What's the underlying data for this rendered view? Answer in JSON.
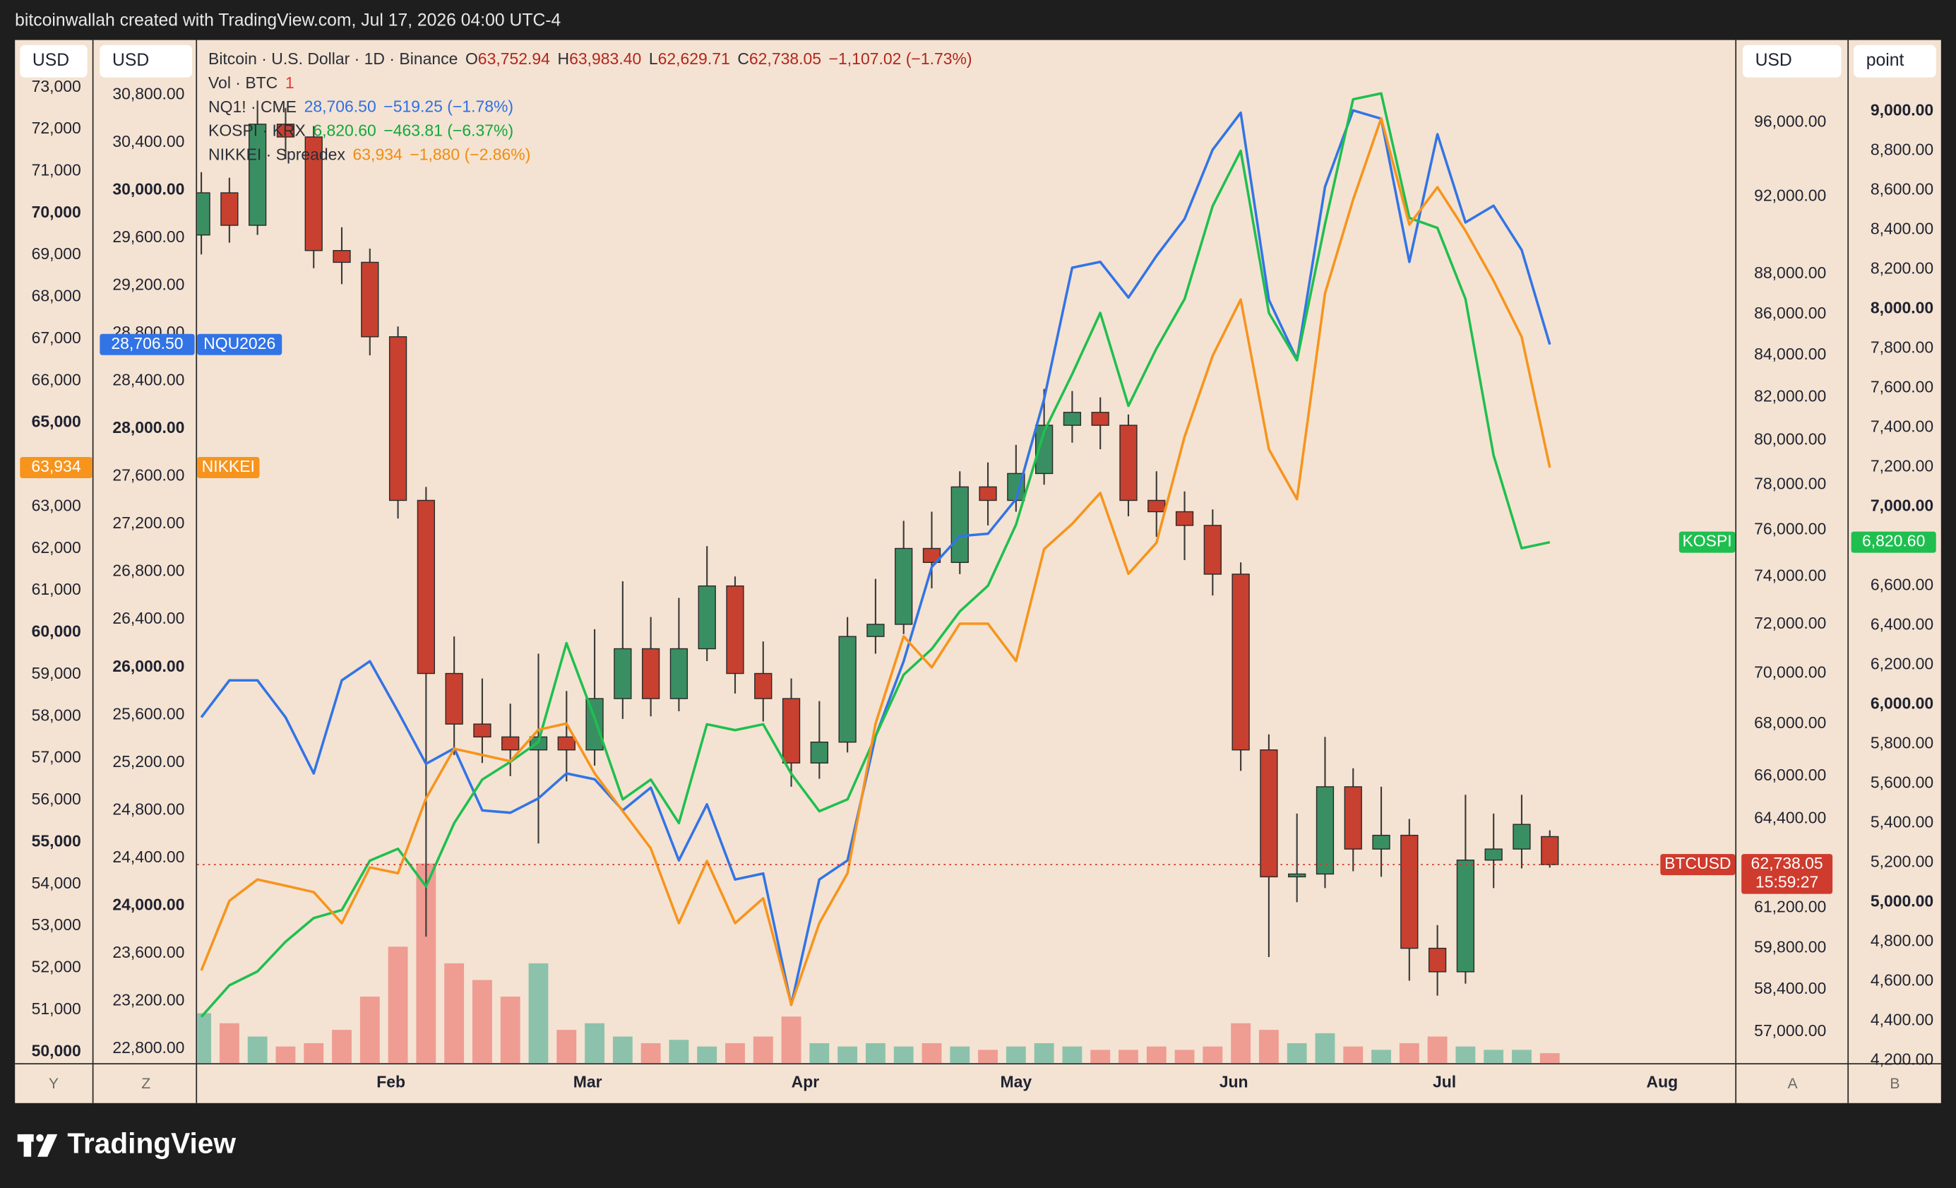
{
  "header": {
    "text": "bitcoinwallah created with TradingView.com, Jul 17, 2026 04:00 UTC-4"
  },
  "footer": {
    "brand": "TradingView"
  },
  "chart_data": {
    "type": "candlestick",
    "x": [
      4,
      8,
      12,
      16,
      20,
      24,
      28,
      32,
      36,
      40,
      44,
      48,
      52,
      56,
      60,
      64,
      68,
      72,
      76,
      80,
      84,
      88,
      92,
      96,
      100,
      104,
      108,
      112,
      116,
      120,
      124,
      128,
      132,
      136,
      140,
      144,
      148,
      152,
      156,
      160,
      164,
      168,
      172,
      176,
      180,
      184,
      188,
      192,
      196
    ],
    "xlim": [
      3.4,
      222.4
    ],
    "xticks": [
      {
        "value": 31,
        "label": "Feb"
      },
      {
        "value": 59,
        "label": "Mar"
      },
      {
        "value": 90,
        "label": "Apr"
      },
      {
        "value": 120,
        "label": "May"
      },
      {
        "value": 151,
        "label": "Jun"
      },
      {
        "value": 181,
        "label": "Jul"
      },
      {
        "value": 212,
        "label": "Aug"
      }
    ],
    "pane_letters": [
      "Y",
      "Z",
      "A",
      "B"
    ],
    "axes": {
      "nikkei": {
        "unit": "USD",
        "scale": "linear",
        "ylim": [
          49730,
          74130
        ],
        "yticks": [
          {
            "value": 50000,
            "label": "50,000",
            "bold": true
          },
          {
            "value": 51000,
            "label": "51,000"
          },
          {
            "value": 52000,
            "label": "52,000"
          },
          {
            "value": 53000,
            "label": "53,000"
          },
          {
            "value": 54000,
            "label": "54,000"
          },
          {
            "value": 55000,
            "label": "55,000",
            "bold": true
          },
          {
            "value": 56000,
            "label": "56,000"
          },
          {
            "value": 57000,
            "label": "57,000"
          },
          {
            "value": 58000,
            "label": "58,000"
          },
          {
            "value": 59000,
            "label": "59,000"
          },
          {
            "value": 60000,
            "label": "60,000",
            "bold": true
          },
          {
            "value": 61000,
            "label": "61,000"
          },
          {
            "value": 62000,
            "label": "62,000"
          },
          {
            "value": 63000,
            "label": "63,000"
          },
          {
            "value": 64000,
            "label": "64,000"
          },
          {
            "value": 65000,
            "label": "65,000",
            "bold": true
          },
          {
            "value": 66000,
            "label": "66,000"
          },
          {
            "value": 67000,
            "label": "67,000"
          },
          {
            "value": 68000,
            "label": "68,000"
          },
          {
            "value": 69000,
            "label": "69,000"
          },
          {
            "value": 70000,
            "label": "70,000",
            "bold": true
          },
          {
            "value": 71000,
            "label": "71,000"
          },
          {
            "value": 72000,
            "label": "72,000"
          },
          {
            "value": 73000,
            "label": "73,000"
          }
        ]
      },
      "nq": {
        "unit": "USD",
        "scale": "linear",
        "ylim": [
          22680,
          31260
        ],
        "yticks": [
          {
            "value": 22800,
            "label": "22,800.00"
          },
          {
            "value": 23200,
            "label": "23,200.00"
          },
          {
            "value": 23600,
            "label": "23,600.00"
          },
          {
            "value": 24000,
            "label": "24,000.00",
            "bold": true
          },
          {
            "value": 24400,
            "label": "24,400.00"
          },
          {
            "value": 24800,
            "label": "24,800.00"
          },
          {
            "value": 25200,
            "label": "25,200.00"
          },
          {
            "value": 25600,
            "label": "25,600.00"
          },
          {
            "value": 26000,
            "label": "26,000.00",
            "bold": true
          },
          {
            "value": 26400,
            "label": "26,400.00"
          },
          {
            "value": 26800,
            "label": "26,800.00"
          },
          {
            "value": 27200,
            "label": "27,200.00"
          },
          {
            "value": 27600,
            "label": "27,600.00"
          },
          {
            "value": 28000,
            "label": "28,000.00",
            "bold": true
          },
          {
            "value": 28400,
            "label": "28,400.00"
          },
          {
            "value": 28800,
            "label": "28,800.00"
          },
          {
            "value": 29200,
            "label": "29,200.00"
          },
          {
            "value": 29600,
            "label": "29,600.00"
          },
          {
            "value": 30000,
            "label": "30,000.00",
            "bold": true
          },
          {
            "value": 30400,
            "label": "30,400.00"
          },
          {
            "value": 30800,
            "label": "30,800.00"
          }
        ]
      },
      "btc": {
        "unit": "USD",
        "scale": "log",
        "ylim": [
          55990,
          100640
        ],
        "yticks": [
          {
            "value": 57000,
            "label": "57,000.00"
          },
          {
            "value": 58400,
            "label": "58,400.00"
          },
          {
            "value": 59800,
            "label": "59,800.00"
          },
          {
            "value": 61200,
            "label": "61,200.00"
          },
          {
            "value": 64400,
            "label": "64,400.00"
          },
          {
            "value": 66000,
            "label": "66,000.00"
          },
          {
            "value": 68000,
            "label": "68,000.00"
          },
          {
            "value": 70000,
            "label": "70,000.00"
          },
          {
            "value": 72000,
            "label": "72,000.00"
          },
          {
            "value": 74000,
            "label": "74,000.00"
          },
          {
            "value": 76000,
            "label": "76,000.00"
          },
          {
            "value": 78000,
            "label": "78,000.00"
          },
          {
            "value": 80000,
            "label": "80,000.00"
          },
          {
            "value": 82000,
            "label": "82,000.00"
          },
          {
            "value": 84000,
            "label": "84,000.00"
          },
          {
            "value": 86000,
            "label": "86,000.00"
          },
          {
            "value": 88000,
            "label": "88,000.00"
          },
          {
            "value": 92000,
            "label": "92,000.00"
          },
          {
            "value": 96000,
            "label": "96,000.00"
          }
        ]
      },
      "kospi": {
        "unit": "point",
        "scale": "linear",
        "ylim": [
          4186,
          9360
        ],
        "yticks": [
          {
            "value": 4200,
            "label": "4,200.00"
          },
          {
            "value": 4400,
            "label": "4,400.00"
          },
          {
            "value": 4600,
            "label": "4,600.00"
          },
          {
            "value": 4800,
            "label": "4,800.00"
          },
          {
            "value": 5000,
            "label": "5,000.00",
            "bold": true
          },
          {
            "value": 5200,
            "label": "5,200.00"
          },
          {
            "value": 5400,
            "label": "5,400.00"
          },
          {
            "value": 5600,
            "label": "5,600.00"
          },
          {
            "value": 5800,
            "label": "5,800.00"
          },
          {
            "value": 6000,
            "label": "6,000.00",
            "bold": true
          },
          {
            "value": 6200,
            "label": "6,200.00"
          },
          {
            "value": 6400,
            "label": "6,400.00"
          },
          {
            "value": 6600,
            "label": "6,600.00"
          },
          {
            "value": 6800,
            "label": "6,800.00"
          },
          {
            "value": 7000,
            "label": "7,000.00",
            "bold": true
          },
          {
            "value": 7200,
            "label": "7,200.00"
          },
          {
            "value": 7400,
            "label": "7,400.00"
          },
          {
            "value": 7600,
            "label": "7,600.00"
          },
          {
            "value": 7800,
            "label": "7,800.00"
          },
          {
            "value": 8000,
            "label": "8,000.00",
            "bold": true
          },
          {
            "value": 8200,
            "label": "8,200.00"
          },
          {
            "value": 8400,
            "label": "8,400.00"
          },
          {
            "value": 8600,
            "label": "8,600.00"
          },
          {
            "value": 8800,
            "label": "8,800.00"
          },
          {
            "value": 9000,
            "label": "9,000.00",
            "bold": true
          }
        ]
      }
    },
    "series": [
      {
        "name": "Bitcoin · U.S. Dollar · 1D · Binance",
        "type": "candlestick",
        "axis": "btc",
        "up_color": "#3a8f62",
        "down_color": "#c8402f",
        "volume_up_color": "#8cc2ab",
        "volume_down_color": "#ef9c93",
        "open": [
          90000,
          92200,
          90500,
          95900,
          95200,
          89200,
          88600,
          84900,
          77300,
          70000,
          68000,
          67500,
          67000,
          67500,
          67000,
          69000,
          71000,
          69000,
          71000,
          73600,
          70000,
          69000,
          66500,
          67300,
          71500,
          72000,
          75200,
          74600,
          77900,
          77300,
          78500,
          80700,
          81300,
          80700,
          77300,
          76800,
          76200,
          74100,
          67000,
          62300,
          62400,
          65600,
          63300,
          63800,
          59800,
          59000,
          62900,
          63300,
          63752.94
        ],
        "high": [
          93300,
          93000,
          97200,
          96800,
          95800,
          90400,
          89300,
          85400,
          77900,
          71500,
          69800,
          68800,
          70800,
          69300,
          71800,
          73800,
          72300,
          73100,
          75300,
          74000,
          71300,
          69800,
          68900,
          72300,
          73900,
          76400,
          76800,
          78600,
          79000,
          79800,
          82400,
          82300,
          82000,
          81200,
          78600,
          77700,
          76900,
          74600,
          67600,
          64600,
          67500,
          66300,
          65600,
          64400,
          60600,
          65300,
          64600,
          65300,
          63983.4
        ],
        "low": [
          89000,
          89600,
          90000,
          94000,
          88300,
          87500,
          84000,
          76500,
          60200,
          66800,
          66500,
          66000,
          63500,
          65800,
          66400,
          68200,
          68300,
          68500,
          70500,
          69200,
          68100,
          65600,
          65900,
          66900,
          70800,
          71600,
          73500,
          74100,
          76200,
          76800,
          78000,
          79900,
          79600,
          76600,
          75700,
          74700,
          73200,
          66200,
          59500,
          61400,
          61900,
          62500,
          62300,
          58700,
          58200,
          58600,
          61900,
          62600,
          62629.71
        ],
        "close": [
          92200,
          90500,
          95900,
          95200,
          89200,
          88600,
          84900,
          77300,
          70000,
          68000,
          67500,
          67000,
          67500,
          67000,
          69000,
          71000,
          69000,
          71000,
          73600,
          70000,
          69000,
          66500,
          67300,
          71500,
          72000,
          75200,
          74600,
          77900,
          77300,
          78500,
          80700,
          81300,
          80700,
          77300,
          76800,
          76200,
          74100,
          67000,
          62300,
          62400,
          65600,
          63300,
          63800,
          59800,
          59000,
          62900,
          63300,
          64200,
          62738.05
        ],
        "volume": [
          15,
          12,
          8,
          5,
          6,
          10,
          20,
          35,
          60,
          30,
          25,
          20,
          30,
          10,
          12,
          8,
          6,
          7,
          5,
          6,
          8,
          14,
          6,
          5,
          6,
          5,
          6,
          5,
          4,
          5,
          6,
          5,
          4,
          4,
          5,
          4,
          5,
          12,
          10,
          6,
          9,
          5,
          4,
          6,
          8,
          5,
          4,
          4,
          3
        ],
        "legend": [
          {
            "text": "O",
            "color": "#2a2e39"
          },
          {
            "text": "63,752.94",
            "color": "#b3261e"
          },
          {
            "text": "H",
            "color": "#2a2e39"
          },
          {
            "text": "63,983.40",
            "color": "#b3261e"
          },
          {
            "text": "L",
            "color": "#2a2e39"
          },
          {
            "text": "62,629.71",
            "color": "#b3261e"
          },
          {
            "text": "C",
            "color": "#2a2e39"
          },
          {
            "text": "62,738.05",
            "color": "#b3261e"
          },
          {
            "text": "−1,107.02 (−1.73%)",
            "color": "#b3261e"
          }
        ],
        "volume_legend": {
          "name": "Vol · BTC",
          "segments": [
            {
              "text": "1",
              "color": "#e53935"
            }
          ]
        },
        "tag": {
          "name": "BTCUSD",
          "value": "62,738.05",
          "countdown": "15:59:27",
          "color": "#cf3b2d"
        }
      },
      {
        "name": "NQ1! · CME",
        "type": "line",
        "axis": "nq",
        "color": "#3274e6",
        "values": [
          25580,
          25890,
          25890,
          25580,
          25110,
          25890,
          26050,
          25630,
          25190,
          25320,
          24800,
          24780,
          24900,
          25110,
          25060,
          24800,
          24990,
          24380,
          24850,
          24220,
          24270,
          23170,
          24220,
          24380,
          25420,
          26050,
          26840,
          27100,
          27120,
          27410,
          28250,
          29350,
          29400,
          29100,
          29450,
          29760,
          30340,
          30650,
          29080,
          28580,
          30030,
          30670,
          30600,
          29400,
          30470,
          29730,
          29870,
          29500,
          28706.5
        ],
        "legend": [
          {
            "text": "28,706.50",
            "color": "#2f6fe4"
          },
          {
            "text": "−519.25 (−1.78%)",
            "color": "#2f6fe4"
          }
        ],
        "tag": {
          "name": "NQU2026",
          "value": "28,706.50",
          "color": "#3274e6"
        }
      },
      {
        "name": "KOSPI · KRX",
        "type": "line",
        "axis": "kospi",
        "color": "#1fbf4f",
        "values": [
          4420,
          4580,
          4650,
          4800,
          4920,
          4960,
          5210,
          5270,
          5080,
          5400,
          5620,
          5710,
          5810,
          6310,
          5930,
          5520,
          5620,
          5400,
          5900,
          5870,
          5900,
          5650,
          5460,
          5520,
          5840,
          6150,
          6280,
          6470,
          6600,
          6910,
          7380,
          7670,
          7980,
          7510,
          7800,
          8050,
          8520,
          8800,
          7980,
          7740,
          8430,
          9060,
          9090,
          8460,
          8410,
          8050,
          7260,
          6790,
          6820.6
        ],
        "legend": [
          {
            "text": "6,820.60",
            "color": "#12a83c"
          },
          {
            "text": "−463.81 (−6.37%)",
            "color": "#12a83c"
          }
        ],
        "tag": {
          "name": "KOSPI",
          "value": "6,820.60",
          "color": "#1fbf4f"
        }
      },
      {
        "name": "NIKKEI · Spreadex",
        "type": "line",
        "axis": "nikkei",
        "color": "#f7941d",
        "values": [
          51940,
          53600,
          54110,
          53960,
          53810,
          53070,
          54400,
          54260,
          56040,
          57230,
          57080,
          56930,
          57680,
          57830,
          56640,
          55740,
          54850,
          53070,
          54550,
          53070,
          53660,
          51130,
          53070,
          54260,
          57830,
          59910,
          59170,
          60210,
          60210,
          59320,
          61990,
          62590,
          63330,
          61400,
          62140,
          64670,
          66600,
          67940,
          64370,
          63180,
          68090,
          70320,
          72260,
          69730,
          70620,
          69580,
          68390,
          67050,
          63934
        ],
        "legend": [
          {
            "text": "63,934",
            "color": "#f08c10"
          },
          {
            "text": "−1,880 (−2.86%)",
            "color": "#f08c10"
          }
        ],
        "tag": {
          "name": "NIKKEI",
          "value": "63,934",
          "color": "#f7941d"
        }
      }
    ]
  }
}
